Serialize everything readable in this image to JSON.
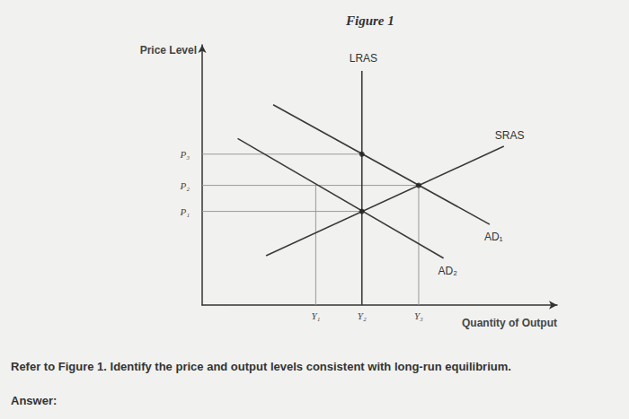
{
  "chart_data": {
    "type": "line",
    "title": "Figure 1",
    "x_label": "Quantity of Output",
    "y_label": "Price Level",
    "xlim": [
      0,
      100
    ],
    "ylim": [
      0,
      100
    ],
    "xticks": [
      {
        "value": 32,
        "label": "Y₁"
      },
      {
        "value": 45,
        "label": "Y₂"
      },
      {
        "value": 61,
        "label": "Y₃"
      }
    ],
    "yticks": [
      {
        "value": 36,
        "label": "P₁"
      },
      {
        "value": 46,
        "label": "P₂"
      },
      {
        "value": 58,
        "label": "P₃"
      }
    ],
    "grid": false,
    "series": [
      {
        "name": "LRAS",
        "color": "#3a3a3a",
        "x": [
          45,
          45
        ],
        "values": [
          0,
          90
        ]
      },
      {
        "name": "SRAS",
        "color": "#3a3a3a",
        "x": [
          18,
          85
        ],
        "values": [
          19,
          61
        ]
      },
      {
        "name": "AD₁",
        "color": "#3a3a3a",
        "x": [
          20,
          81
        ],
        "values": [
          77,
          31
        ]
      },
      {
        "name": "AD₂",
        "color": "#3a3a3a",
        "x": [
          10,
          68
        ],
        "values": [
          64,
          18
        ]
      }
    ],
    "guides": [
      {
        "x": [
          0,
          45
        ],
        "values": [
          58,
          58
        ]
      },
      {
        "x": [
          0,
          61
        ],
        "values": [
          46,
          46
        ]
      },
      {
        "x": [
          0,
          45
        ],
        "values": [
          36,
          36
        ]
      },
      {
        "x": [
          32,
          32
        ],
        "values": [
          0,
          46
        ]
      },
      {
        "x": [
          61,
          61
        ],
        "values": [
          0,
          46
        ]
      }
    ],
    "equilibria": {
      "x": [
        61,
        45,
        45
      ],
      "values": [
        46,
        58,
        36
      ]
    }
  },
  "question": {
    "text": "Refer to Figure 1. Identify the price and output levels consistent with long-run equilibrium.",
    "answer_label": "Answer:"
  }
}
